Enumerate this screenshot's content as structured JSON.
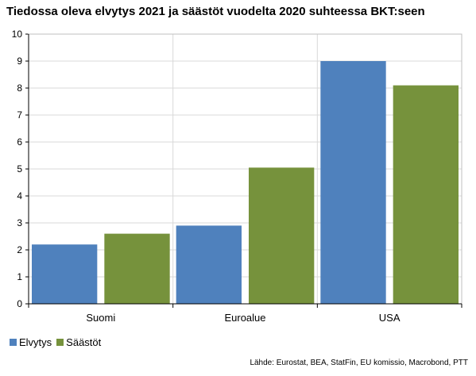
{
  "chart_data": {
    "type": "bar",
    "title": "Tiedossa oleva elvytys 2021 ja säästöt vuodelta 2020 suhteessa BKT:seen",
    "categories": [
      "Suomi",
      "Euroalue",
      "USA"
    ],
    "series": [
      {
        "name": "Elvytys",
        "values": [
          2.2,
          2.9,
          9.0
        ],
        "color": "#4f81bd"
      },
      {
        "name": "Säästöt",
        "values": [
          2.6,
          5.05,
          8.1
        ],
        "color": "#76923c"
      }
    ],
    "xlabel": "",
    "ylabel": "",
    "ylim": [
      0,
      10
    ],
    "yticks": [
      "0",
      "1",
      "2",
      "3",
      "4",
      "5",
      "6",
      "7",
      "8",
      "9",
      "10"
    ],
    "grid": true,
    "legend_position": "bottom-left",
    "source": "Lähde: Eurostat, BEA, StatFin, EU komissio, Macrobond, PTT"
  }
}
